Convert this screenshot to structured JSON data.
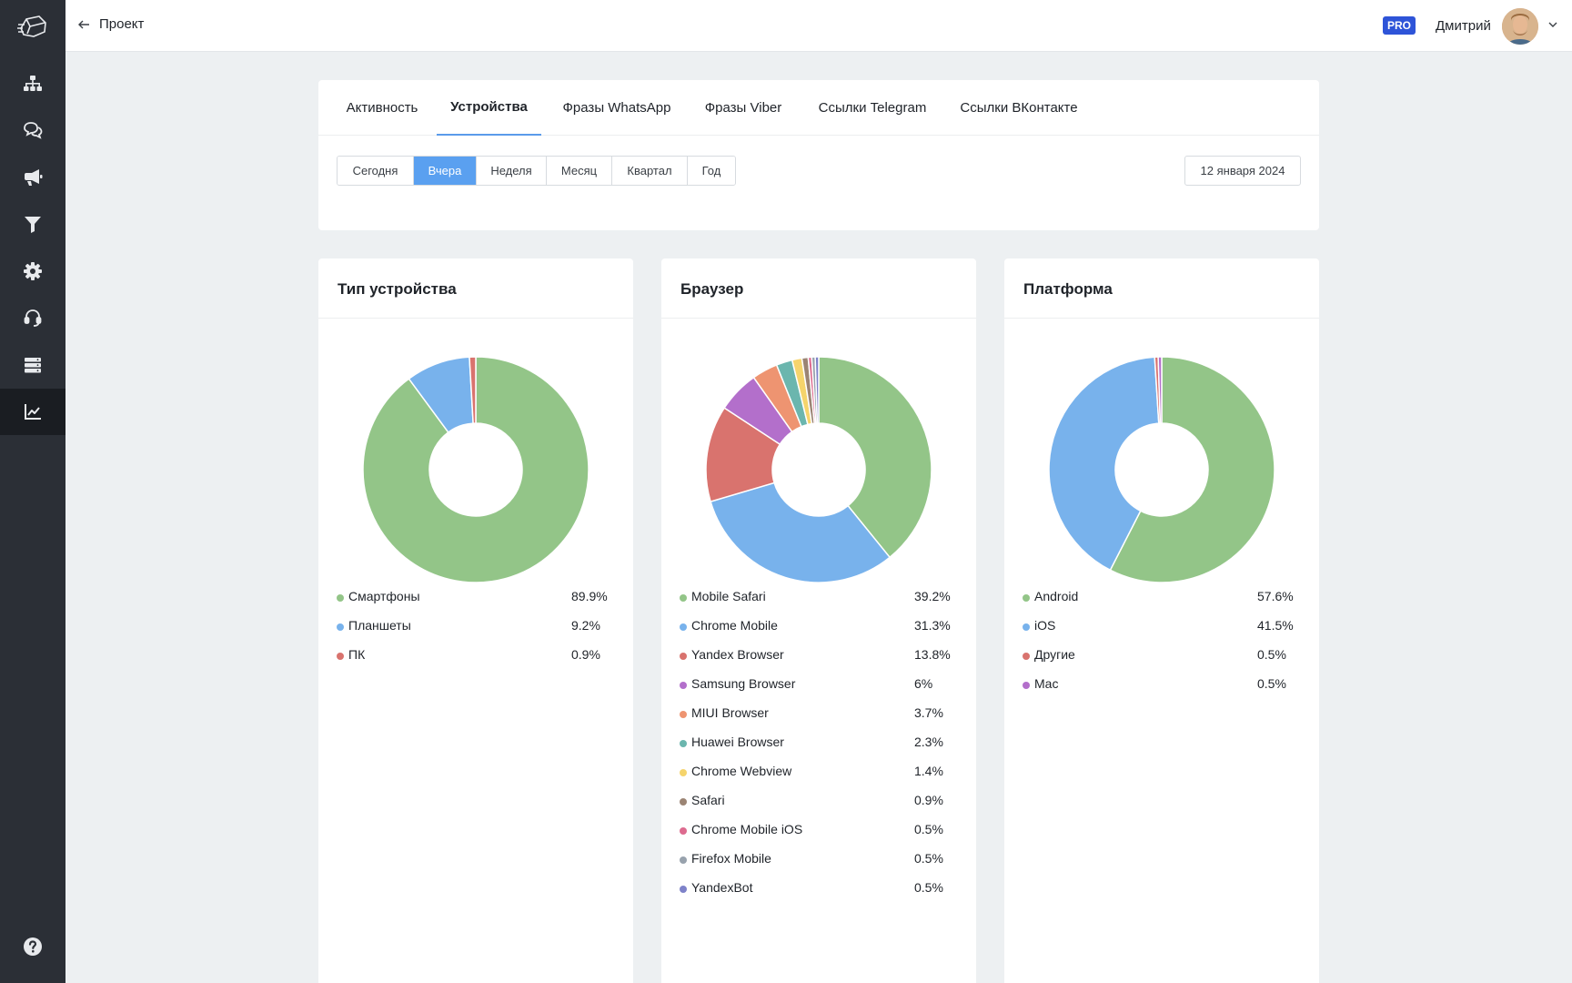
{
  "header": {
    "back_label": "Проект",
    "pro_badge": "PRO",
    "user_name": "Дмитрий"
  },
  "sidebar": {
    "items": [
      {
        "icon": "sitemap-icon",
        "active": false
      },
      {
        "icon": "chat-icon",
        "active": false
      },
      {
        "icon": "megaphone-icon",
        "active": false
      },
      {
        "icon": "filter-icon",
        "active": false
      },
      {
        "icon": "gear-icon",
        "active": false
      },
      {
        "icon": "headset-icon",
        "active": false
      },
      {
        "icon": "server-icon",
        "active": false
      },
      {
        "icon": "chart-icon",
        "active": true
      }
    ],
    "help_icon": "help-icon"
  },
  "tabs": [
    {
      "label": "Активность",
      "active": false
    },
    {
      "label": "Устройства",
      "active": true
    },
    {
      "label": "Фразы WhatsApp",
      "active": false
    },
    {
      "label": "Фразы Viber",
      "active": false
    },
    {
      "label": "Ссылки Telegram",
      "active": false
    },
    {
      "label": "Ссылки ВКонтакте",
      "active": false
    }
  ],
  "periods": [
    {
      "label": "Сегодня",
      "active": false
    },
    {
      "label": "Вчера",
      "active": true
    },
    {
      "label": "Неделя",
      "active": false
    },
    {
      "label": "Месяц",
      "active": false
    },
    {
      "label": "Квартал",
      "active": false
    },
    {
      "label": "Год",
      "active": false
    }
  ],
  "date": "12 января 2024",
  "cards": [
    {
      "title": "Тип устройства"
    },
    {
      "title": "Браузер"
    },
    {
      "title": "Платформа"
    }
  ],
  "chart_data": [
    {
      "type": "pie",
      "title": "Тип устройства",
      "categories": [
        "Смартфоны",
        "Планшеты",
        "ПК"
      ],
      "values": [
        89.9,
        9.2,
        0.9
      ],
      "labels": [
        "89.9%",
        "9.2%",
        "0.9%"
      ],
      "colors": [
        "#93c588",
        "#78b2ec",
        "#d9736e"
      ],
      "legend": "bottom"
    },
    {
      "type": "pie",
      "title": "Браузер",
      "categories": [
        "Mobile Safari",
        "Chrome Mobile",
        "Yandex Browser",
        "Samsung Browser",
        "MIUI Browser",
        "Huawei Browser",
        "Chrome Webview",
        "Safari",
        "Chrome Mobile iOS",
        "Firefox Mobile",
        "YandexBot"
      ],
      "values": [
        39.2,
        31.3,
        13.8,
        6,
        3.7,
        2.3,
        1.4,
        0.9,
        0.5,
        0.5,
        0.5
      ],
      "labels": [
        "39.2%",
        "31.3%",
        "13.8%",
        "6%",
        "3.7%",
        "2.3%",
        "1.4%",
        "0.9%",
        "0.5%",
        "0.5%",
        "0.5%"
      ],
      "colors": [
        "#93c588",
        "#78b2ec",
        "#d9736e",
        "#b36fcb",
        "#ee9471",
        "#6bb6ae",
        "#f5d46c",
        "#9b8474",
        "#dd6b8f",
        "#98a2ad",
        "#7e82c9"
      ],
      "legend": "bottom"
    },
    {
      "type": "pie",
      "title": "Платформа",
      "categories": [
        "Android",
        "iOS",
        "Другие",
        "Mac"
      ],
      "values": [
        57.6,
        41.5,
        0.5,
        0.5
      ],
      "labels": [
        "57.6%",
        "41.5%",
        "0.5%",
        "0.5%"
      ],
      "colors": [
        "#93c588",
        "#78b2ec",
        "#d9736e",
        "#b36fcb"
      ],
      "legend": "bottom"
    }
  ]
}
